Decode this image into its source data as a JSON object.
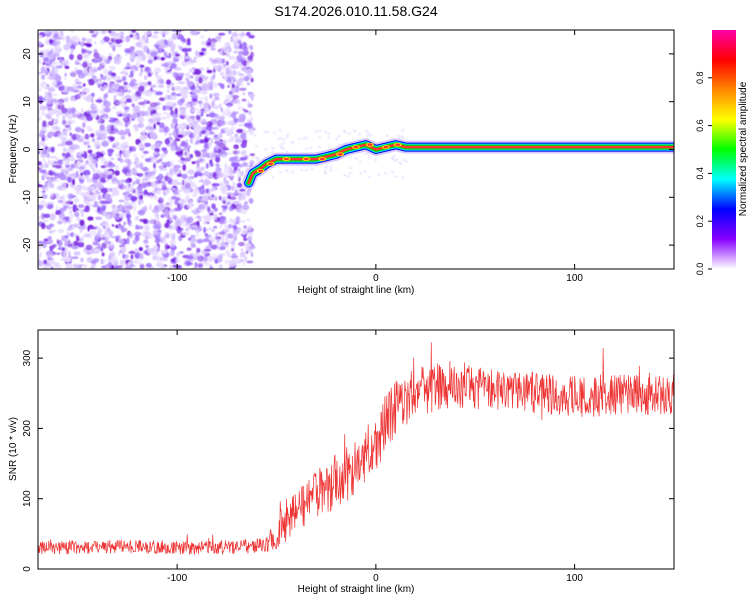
{
  "figure_title": "S174.2026.010.11.58.G24",
  "chart_data": [
    {
      "type": "heatmap",
      "title": "S174.2026.010.11.58.G24",
      "xlabel": "Height of straight line (km)",
      "ylabel": "Frequency (Hz)",
      "xlim": [
        -170,
        150
      ],
      "ylim": [
        -25,
        25
      ],
      "xticks": [
        -100,
        0,
        100
      ],
      "yticks": [
        -20,
        -10,
        0,
        10,
        20
      ],
      "noise_region_x": [
        -170,
        -62
      ],
      "ridge": {
        "x": [
          -64,
          -62,
          -58,
          -55,
          -50,
          -45,
          -40,
          -35,
          -30,
          -25,
          -20,
          -15,
          -10,
          -5,
          0,
          5,
          10,
          15,
          150
        ],
        "freq": [
          -7,
          -5,
          -4,
          -3,
          -2,
          -2,
          -2,
          -2,
          -2,
          -1.5,
          -1,
          0,
          0.5,
          1,
          0,
          0.5,
          1,
          0.5,
          0.5
        ]
      },
      "colorbar": {
        "label": "Normalized spectral amplitude",
        "range": [
          0,
          1
        ],
        "ticks": [
          0.0,
          0.2,
          0.4,
          0.6,
          0.8
        ],
        "tick_labels": [
          "0.0",
          "0.2",
          "0.4",
          "0.6",
          "0.8"
        ],
        "colors": [
          "#ffffff",
          "#8800ff",
          "#0000ff",
          "#00ffff",
          "#00ff00",
          "#ffff00",
          "#ff8800",
          "#ff0000",
          "#ff00aa"
        ]
      }
    },
    {
      "type": "line",
      "title": "",
      "xlabel": "Height of straight line (km)",
      "ylabel": "SNR (10 * v/v)",
      "xlim": [
        -170,
        150
      ],
      "ylim": [
        0,
        340
      ],
      "xticks": [
        -100,
        0,
        100
      ],
      "yticks": [
        0,
        100,
        200,
        300
      ],
      "color": "#ee3333",
      "series": [
        {
          "name": "SNR",
          "x": [
            -170,
            -150,
            -130,
            -110,
            -90,
            -70,
            -55,
            -50,
            -45,
            -40,
            -30,
            -20,
            -10,
            -5,
            0,
            5,
            10,
            20,
            30,
            40,
            50,
            60,
            80,
            100,
            120,
            140,
            150
          ],
          "mean": [
            30,
            31,
            32,
            31,
            30,
            31,
            33,
            50,
            70,
            85,
            105,
            125,
            145,
            165,
            175,
            210,
            230,
            250,
            260,
            265,
            258,
            255,
            250,
            245,
            248,
            245,
            250
          ],
          "spread": [
            10,
            10,
            10,
            10,
            10,
            10,
            12,
            25,
            30,
            30,
            35,
            40,
            40,
            40,
            40,
            40,
            40,
            35,
            35,
            35,
            30,
            30,
            30,
            30,
            30,
            30,
            30
          ]
        }
      ]
    }
  ]
}
